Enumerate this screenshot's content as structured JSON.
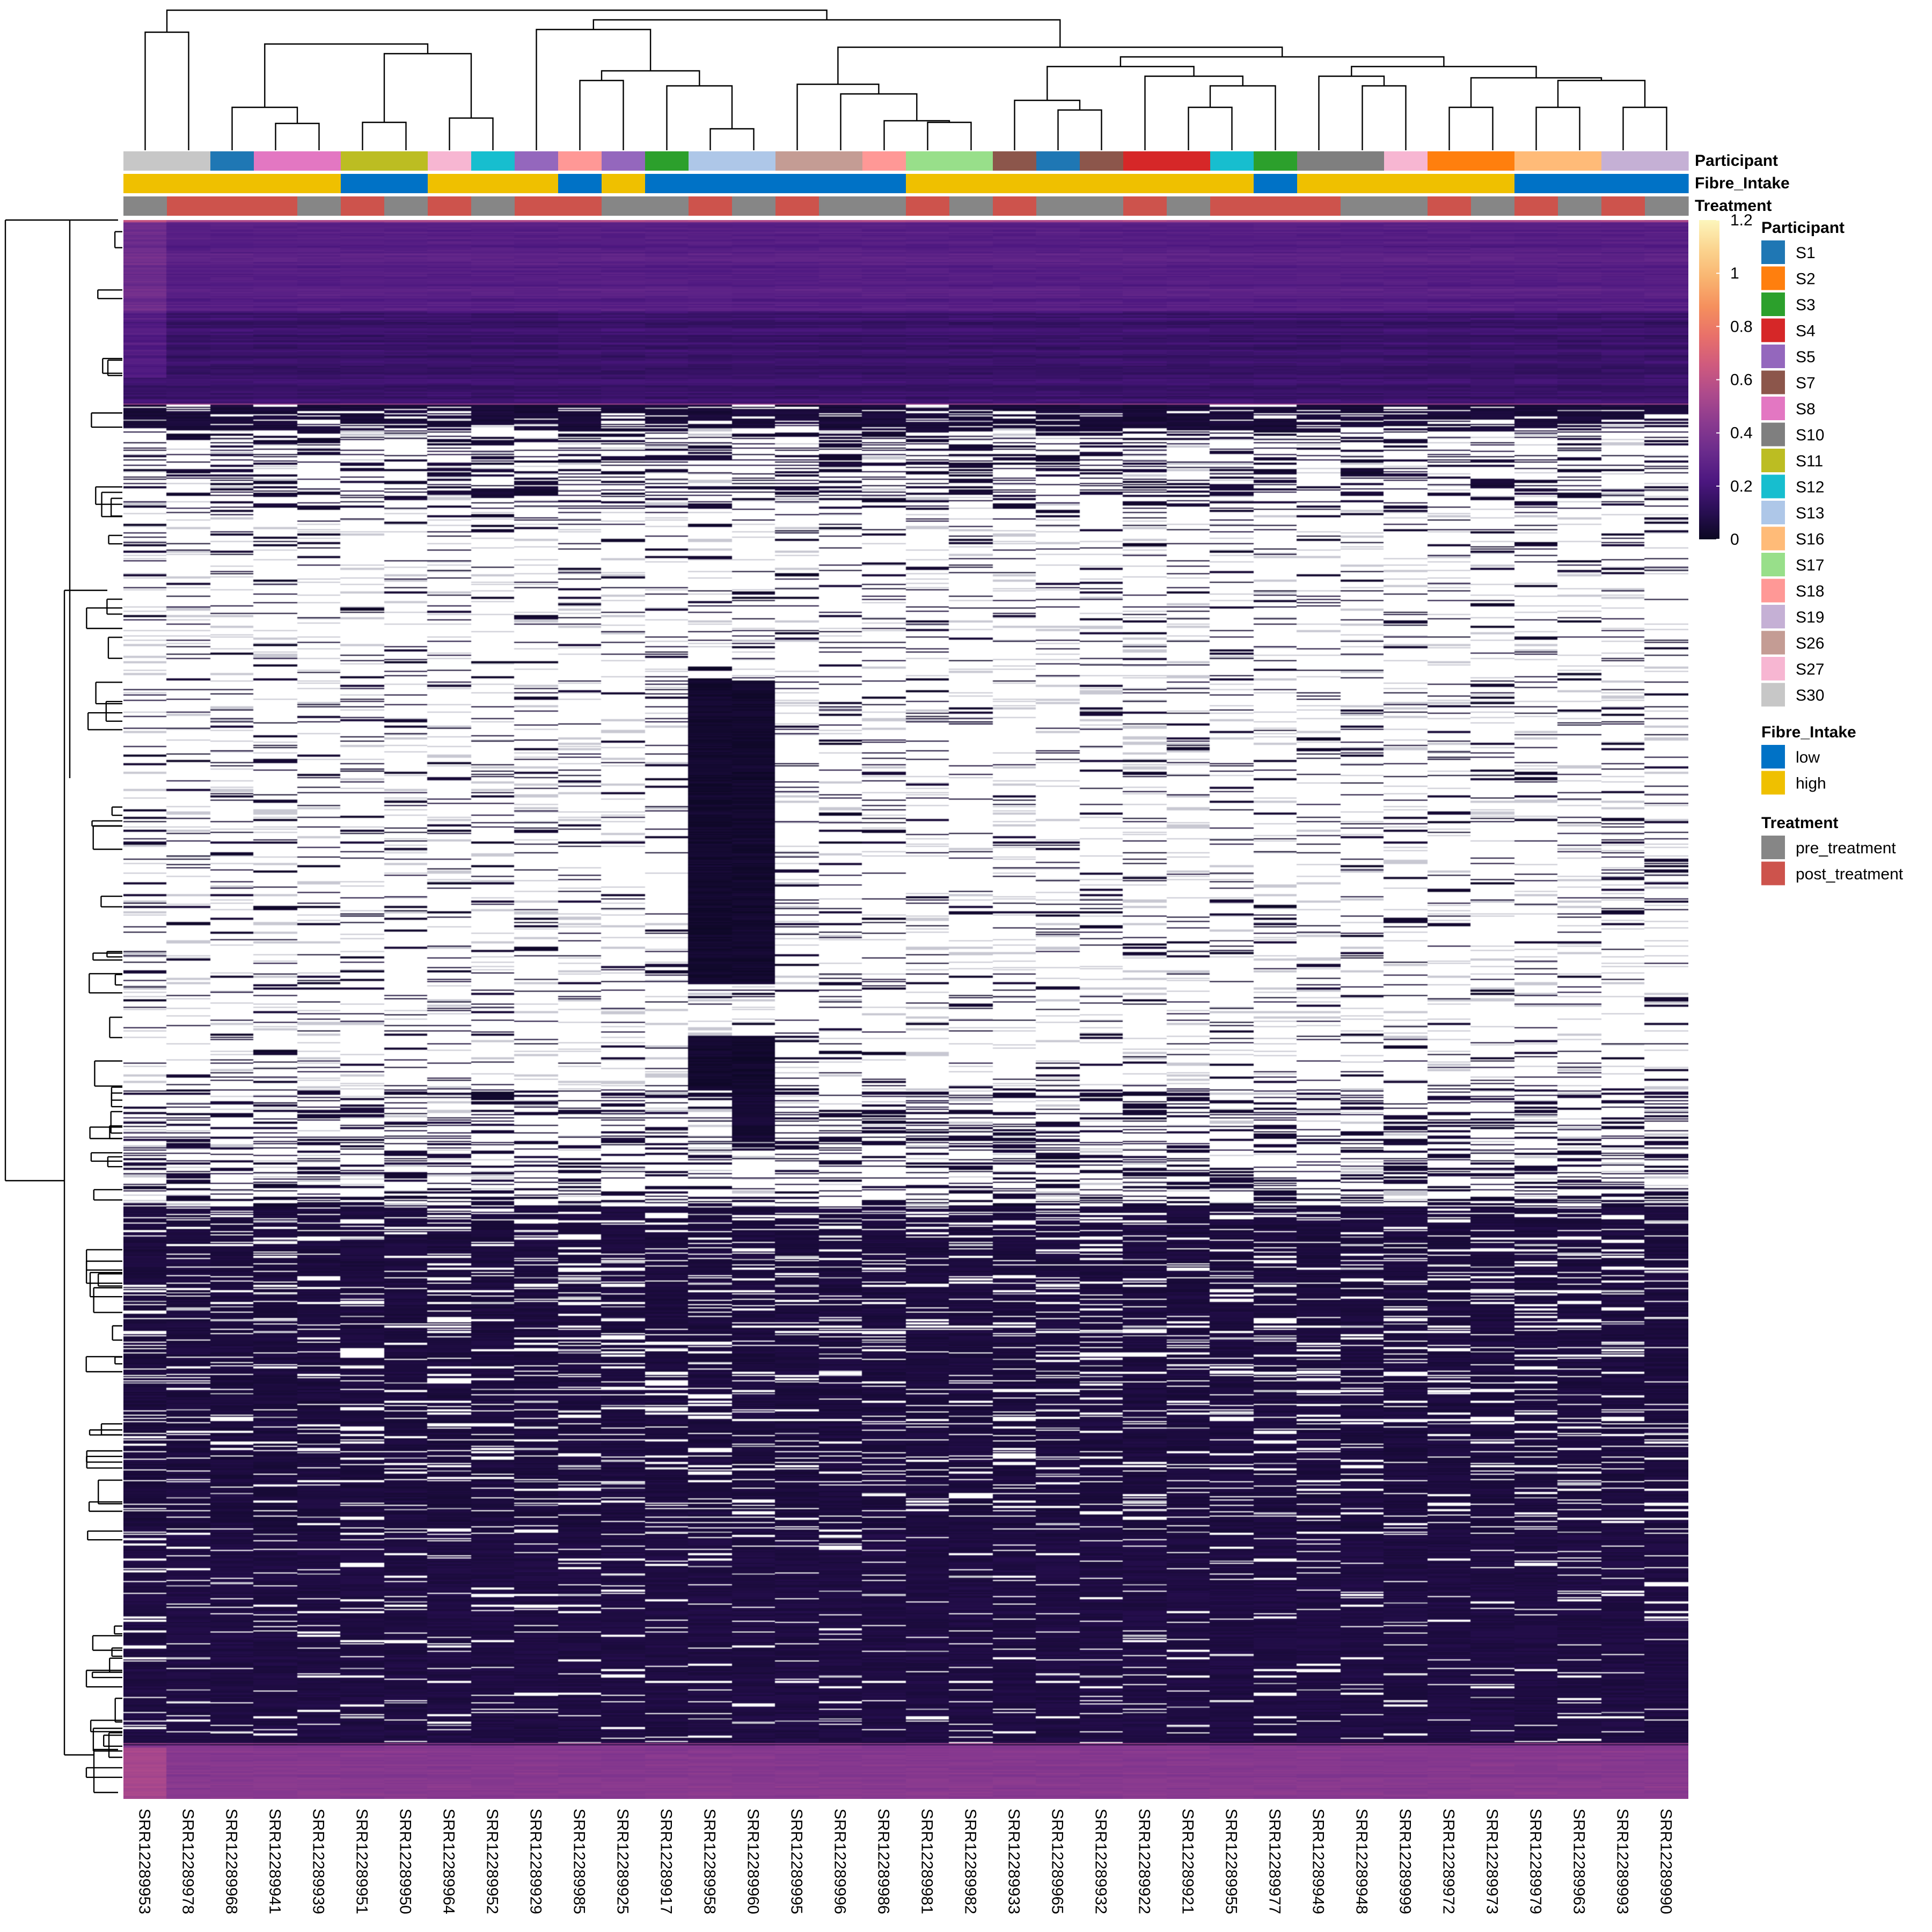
{
  "chart_data": {
    "type": "heatmap",
    "title": "",
    "xlabel": "",
    "ylabel": "",
    "columns": [
      {
        "sample": "SRR12289953",
        "participant": "S30",
        "fibre": "high",
        "treatment": "pre_treatment"
      },
      {
        "sample": "SRR12289978",
        "participant": "S30",
        "fibre": "high",
        "treatment": "post_treatment"
      },
      {
        "sample": "SRR12289968",
        "participant": "S1",
        "fibre": "high",
        "treatment": "post_treatment"
      },
      {
        "sample": "SRR12289941",
        "participant": "S8",
        "fibre": "high",
        "treatment": "post_treatment"
      },
      {
        "sample": "SRR12289939",
        "participant": "S8",
        "fibre": "high",
        "treatment": "pre_treatment"
      },
      {
        "sample": "SRR12289951",
        "participant": "S11",
        "fibre": "low",
        "treatment": "post_treatment"
      },
      {
        "sample": "SRR12289950",
        "participant": "S11",
        "fibre": "low",
        "treatment": "pre_treatment"
      },
      {
        "sample": "SRR12289964",
        "participant": "S27",
        "fibre": "high",
        "treatment": "post_treatment"
      },
      {
        "sample": "SRR12289952",
        "participant": "S12",
        "fibre": "high",
        "treatment": "pre_treatment"
      },
      {
        "sample": "SRR12289929",
        "participant": "S5",
        "fibre": "high",
        "treatment": "post_treatment"
      },
      {
        "sample": "SRR12289985",
        "participant": "S18",
        "fibre": "low",
        "treatment": "post_treatment"
      },
      {
        "sample": "SRR12289925",
        "participant": "S5",
        "fibre": "high",
        "treatment": "pre_treatment"
      },
      {
        "sample": "SRR12289917",
        "participant": "S3",
        "fibre": "low",
        "treatment": "pre_treatment"
      },
      {
        "sample": "SRR12289958",
        "participant": "S13",
        "fibre": "low",
        "treatment": "post_treatment"
      },
      {
        "sample": "SRR12289960",
        "participant": "S13",
        "fibre": "low",
        "treatment": "pre_treatment"
      },
      {
        "sample": "SRR12289995",
        "participant": "S26",
        "fibre": "low",
        "treatment": "post_treatment"
      },
      {
        "sample": "SRR12289996",
        "participant": "S26",
        "fibre": "low",
        "treatment": "pre_treatment"
      },
      {
        "sample": "SRR12289986",
        "participant": "S18",
        "fibre": "low",
        "treatment": "pre_treatment"
      },
      {
        "sample": "SRR12289981",
        "participant": "S17",
        "fibre": "high",
        "treatment": "post_treatment"
      },
      {
        "sample": "SRR12289982",
        "participant": "S17",
        "fibre": "high",
        "treatment": "pre_treatment"
      },
      {
        "sample": "SRR12289933",
        "participant": "S7",
        "fibre": "high",
        "treatment": "post_treatment"
      },
      {
        "sample": "SRR12289965",
        "participant": "S1",
        "fibre": "high",
        "treatment": "pre_treatment"
      },
      {
        "sample": "SRR12289932",
        "participant": "S7",
        "fibre": "high",
        "treatment": "pre_treatment"
      },
      {
        "sample": "SRR12289922",
        "participant": "S4",
        "fibre": "high",
        "treatment": "post_treatment"
      },
      {
        "sample": "SRR12289921",
        "participant": "S4",
        "fibre": "high",
        "treatment": "pre_treatment"
      },
      {
        "sample": "SRR12289955",
        "participant": "S12",
        "fibre": "high",
        "treatment": "post_treatment"
      },
      {
        "sample": "SRR12289977",
        "participant": "S3",
        "fibre": "low",
        "treatment": "post_treatment"
      },
      {
        "sample": "SRR12289949",
        "participant": "S10",
        "fibre": "high",
        "treatment": "post_treatment"
      },
      {
        "sample": "SRR12289948",
        "participant": "S10",
        "fibre": "high",
        "treatment": "pre_treatment"
      },
      {
        "sample": "SRR12289999",
        "participant": "S27",
        "fibre": "high",
        "treatment": "pre_treatment"
      },
      {
        "sample": "SRR12289972",
        "participant": "S2",
        "fibre": "high",
        "treatment": "post_treatment"
      },
      {
        "sample": "SRR12289973",
        "participant": "S2",
        "fibre": "high",
        "treatment": "pre_treatment"
      },
      {
        "sample": "SRR12289979",
        "participant": "S16",
        "fibre": "low",
        "treatment": "post_treatment"
      },
      {
        "sample": "SRR12289963",
        "participant": "S16",
        "fibre": "low",
        "treatment": "pre_treatment"
      },
      {
        "sample": "SRR12289993",
        "participant": "S19",
        "fibre": "low",
        "treatment": "post_treatment"
      },
      {
        "sample": "SRR12289990",
        "participant": "S19",
        "fibre": "low",
        "treatment": "pre_treatment"
      }
    ],
    "annotation_rows": [
      "Participant",
      "Fibre_Intake",
      "Treatment"
    ],
    "color_scale": {
      "min": 0,
      "max": 1.2,
      "ticks": [
        0,
        0.2,
        0.4,
        0.6,
        0.8,
        1,
        1.2
      ],
      "tick_labels": [
        "0",
        "0.2",
        "0.4",
        "0.6",
        "0.8",
        "1",
        "1.2"
      ],
      "palette": [
        "#0b0722",
        "#2a0f55",
        "#4c1780",
        "#6a2b8c",
        "#8a3a8f",
        "#ad4a8c",
        "#cf5a7e",
        "#e8706a",
        "#f58f5d",
        "#f9b470",
        "#fbd48f",
        "#fcf6bc"
      ],
      "missing_color": "#ffffff"
    },
    "row_blocks": [
      {
        "rows_from": 0,
        "rows_to": 140,
        "typical_value": 0.28,
        "note": "purple"
      },
      {
        "rows_from": 140,
        "rows_to": 750,
        "typical_value": null,
        "note": "mostly missing"
      },
      {
        "rows_from": 750,
        "rows_to": 1160,
        "typical_value": 0.06,
        "note": "dark"
      },
      {
        "rows_from": 1160,
        "rows_to": 1200,
        "typical_value": 0.42,
        "note": "purple"
      }
    ],
    "legends": {
      "participant": {
        "title": "Participant",
        "items": [
          {
            "label": "S1",
            "color": "#1f77b4"
          },
          {
            "label": "S2",
            "color": "#ff7f0e"
          },
          {
            "label": "S3",
            "color": "#2ca02c"
          },
          {
            "label": "S4",
            "color": "#d62728"
          },
          {
            "label": "S5",
            "color": "#9467bd"
          },
          {
            "label": "S7",
            "color": "#8c564b"
          },
          {
            "label": "S8",
            "color": "#e377c2"
          },
          {
            "label": "S10",
            "color": "#7f7f7f"
          },
          {
            "label": "S11",
            "color": "#bcbd22"
          },
          {
            "label": "S12",
            "color": "#17becf"
          },
          {
            "label": "S13",
            "color": "#aec7e8"
          },
          {
            "label": "S16",
            "color": "#ffbb78"
          },
          {
            "label": "S17",
            "color": "#98df8a"
          },
          {
            "label": "S18",
            "color": "#ff9896"
          },
          {
            "label": "S19",
            "color": "#c5b0d5"
          },
          {
            "label": "S26",
            "color": "#c49c94"
          },
          {
            "label": "S27",
            "color": "#f7b6d2"
          },
          {
            "label": "S30",
            "color": "#c7c7c7"
          }
        ]
      },
      "fibre": {
        "title": "Fibre_Intake",
        "items": [
          {
            "label": "low",
            "color": "#0072c6"
          },
          {
            "label": "high",
            "color": "#efc000"
          }
        ]
      },
      "treatment": {
        "title": "Treatment",
        "items": [
          {
            "label": "pre_treatment",
            "color": "#868686"
          },
          {
            "label": "post_treatment",
            "color": "#cd534c"
          }
        ]
      }
    }
  }
}
